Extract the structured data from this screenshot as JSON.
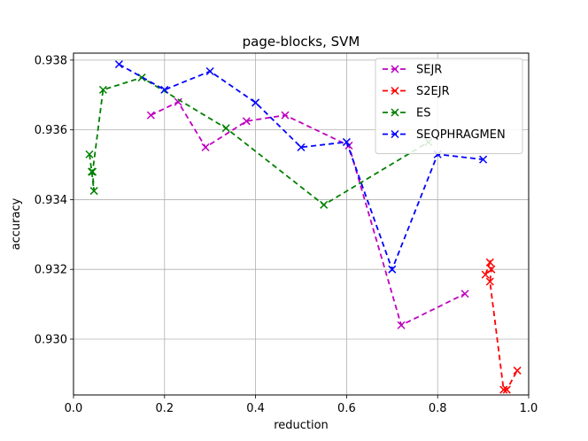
{
  "chart_data": {
    "type": "line",
    "title": "page-blocks, SVM",
    "xlabel": "reduction",
    "ylabel": "accuracy",
    "xlim": [
      0.0,
      1.0
    ],
    "ylim": [
      0.9284,
      0.9382
    ],
    "xticks": [
      0.0,
      0.2,
      0.4,
      0.6,
      0.8,
      1.0
    ],
    "xtick_labels": [
      "0.0",
      "0.2",
      "0.4",
      "0.6",
      "0.8",
      "1.0"
    ],
    "yticks": [
      0.93,
      0.932,
      0.934,
      0.936,
      0.938
    ],
    "ytick_labels": [
      "0.930",
      "0.932",
      "0.934",
      "0.936",
      "0.938"
    ],
    "grid": true,
    "legend_position": "top-right",
    "series": [
      {
        "name": "SEJR",
        "color": "#bf00bf",
        "x": [
          0.17,
          0.23,
          0.29,
          0.38,
          0.465,
          0.605,
          0.72,
          0.86
        ],
        "y": [
          0.93642,
          0.9368,
          0.9355,
          0.93625,
          0.93642,
          0.93555,
          0.9304,
          0.9313
        ]
      },
      {
        "name": "S2EJR",
        "color": "#ff0000",
        "x": [
          0.905,
          0.915,
          0.918,
          0.915,
          0.945,
          0.952,
          0.975
        ],
        "y": [
          0.93185,
          0.9322,
          0.932,
          0.93165,
          0.92855,
          0.92855,
          0.9291
        ]
      },
      {
        "name": "ES",
        "color": "#008000",
        "x": [
          0.035,
          0.04,
          0.045,
          0.042,
          0.065,
          0.15,
          0.335,
          0.55,
          0.78
        ],
        "y": [
          0.9353,
          0.9348,
          0.93425,
          0.9348,
          0.93715,
          0.9375,
          0.93605,
          0.93385,
          0.93565
        ]
      },
      {
        "name": "SEQPHRAGMEN",
        "color": "#0000ff",
        "x": [
          0.1,
          0.2,
          0.3,
          0.4,
          0.5,
          0.6,
          0.7,
          0.8,
          0.9
        ],
        "y": [
          0.93788,
          0.93715,
          0.93768,
          0.93678,
          0.9355,
          0.93565,
          0.932,
          0.9353,
          0.93515
        ]
      }
    ]
  }
}
